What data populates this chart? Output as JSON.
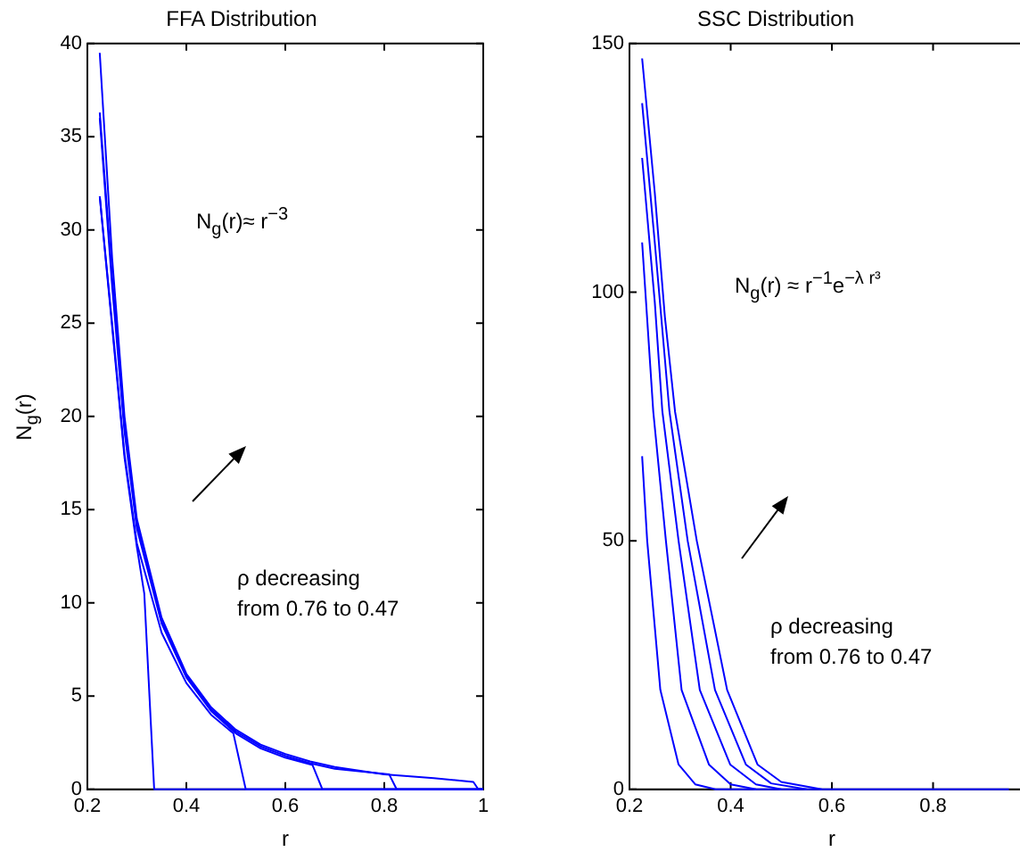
{
  "chart_data": [
    {
      "type": "line",
      "title": "FFA Distribution",
      "xlabel": "r",
      "ylabel": "N$_{g}$(r)",
      "xlim": [
        0.2,
        1
      ],
      "ylim": [
        0,
        40
      ],
      "xticks": [
        0.2,
        0.4,
        0.6,
        0.8,
        1
      ],
      "yticks": [
        0,
        5,
        10,
        15,
        20,
        25,
        30,
        35,
        40
      ],
      "legend": false,
      "grid": false,
      "annotations": [
        "N$_{g}$(r)≈ r$^{−3}$",
        "ρ decreasing\nfrom 0.76 to 0.47"
      ],
      "series": [
        {
          "color": "#0000ff",
          "x": [
            0.225,
            0.25,
            0.275,
            0.3,
            0.35,
            0.4,
            0.45,
            0.5,
            0.55,
            0.6,
            0.65,
            0.7,
            0.8,
            0.9,
            0.98,
            0.99,
            1
          ],
          "values": [
            39.5,
            28.5,
            20,
            14.5,
            9.2,
            6.2,
            4.4,
            3.2,
            2.4,
            1.9,
            1.5,
            1.2,
            0.8,
            0.6,
            0.4,
            0,
            0
          ]
        },
        {
          "color": "#0000ff",
          "x": [
            0.225,
            0.25,
            0.275,
            0.3,
            0.35,
            0.4,
            0.45,
            0.5,
            0.55,
            0.6,
            0.65,
            0.7,
            0.81,
            0.825,
            1
          ],
          "values": [
            36.3,
            27.5,
            19.5,
            14.2,
            9,
            6.1,
            4.3,
            3.1,
            2.3,
            1.8,
            1.4,
            1.1,
            0.8,
            0,
            0
          ]
        },
        {
          "color": "#0000ff",
          "x": [
            0.225,
            0.25,
            0.275,
            0.3,
            0.35,
            0.4,
            0.45,
            0.5,
            0.55,
            0.6,
            0.655,
            0.675,
            1
          ],
          "values": [
            36,
            27,
            19.2,
            14,
            8.9,
            6,
            4.2,
            3,
            2.2,
            1.7,
            1.3,
            0,
            0
          ]
        },
        {
          "color": "#0000ff",
          "x": [
            0.225,
            0.25,
            0.275,
            0.3,
            0.35,
            0.4,
            0.45,
            0.495,
            0.52,
            1
          ],
          "values": [
            31.8,
            25,
            18,
            13.2,
            8.4,
            5.7,
            4,
            3,
            0,
            0
          ]
        },
        {
          "color": "#0000ff",
          "x": [
            0.225,
            0.25,
            0.275,
            0.3,
            0.315,
            0.335,
            1
          ],
          "values": [
            31.8,
            24.8,
            17.8,
            13,
            10.5,
            0,
            0
          ]
        }
      ]
    },
    {
      "type": "line",
      "title": "SSC Distribution",
      "xlabel": "r",
      "xlim": [
        0.2,
        1
      ],
      "ylim": [
        0,
        150
      ],
      "xticks": [
        0.2,
        0.4,
        0.6,
        0.8
      ],
      "yticks": [
        0,
        50,
        100,
        150
      ],
      "legend": false,
      "grid": false,
      "annotations": [
        "N$_{g}$(r) ≈ r$^{−1}$e$^{−λ r³}$",
        "ρ decreasing\nfrom 0.76 to 0.47"
      ],
      "series": [
        {
          "color": "#0000ff",
          "x": [
            0.225,
            0.25,
            0.27,
            0.29,
            0.333,
            0.393,
            0.453,
            0.5,
            0.58
          ],
          "values": [
            147,
            120,
            95,
            76,
            50,
            20,
            5,
            1.5,
            0
          ]
        },
        {
          "color": "#0000ff",
          "x": [
            0.225,
            0.25,
            0.279,
            0.315,
            0.369,
            0.43,
            0.48,
            0.55
          ],
          "values": [
            138,
            110,
            76,
            50,
            20,
            5,
            1.2,
            0
          ]
        },
        {
          "color": "#0000ff",
          "x": [
            0.225,
            0.25,
            0.265,
            0.297,
            0.339,
            0.399,
            0.45,
            0.5
          ],
          "values": [
            127,
            98,
            76,
            50,
            20,
            5,
            1,
            0
          ]
        },
        {
          "color": "#0000ff",
          "x": [
            0.225,
            0.247,
            0.272,
            0.303,
            0.357,
            0.4,
            0.45
          ],
          "values": [
            110,
            76,
            50,
            20,
            5,
            1,
            0
          ]
        },
        {
          "color": "#0000ff",
          "x": [
            0.225,
            0.235,
            0.261,
            0.297,
            0.33,
            0.37,
            0.95
          ],
          "values": [
            67,
            50,
            20,
            5,
            1,
            0,
            0
          ]
        }
      ]
    }
  ]
}
